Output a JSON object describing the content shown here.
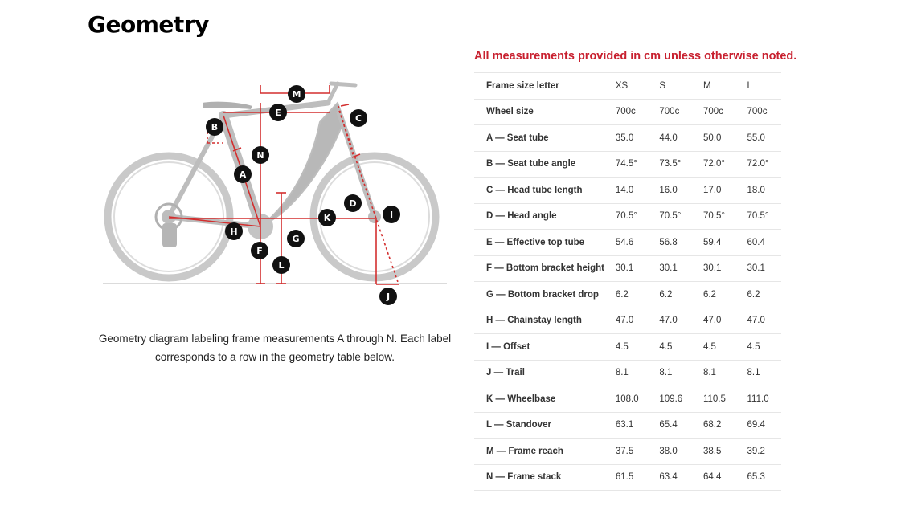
{
  "page": {
    "title": "Geometry",
    "caption_line1": "Geometry diagram labeling frame measurements A through N. Each label",
    "caption_line2": "corresponds to a row in the geometry table below.",
    "note": "All measurements provided in cm unless otherwise noted."
  },
  "diagram": {
    "markers": [
      "A",
      "B",
      "C",
      "D",
      "E",
      "F",
      "G",
      "H",
      "I",
      "J",
      "K",
      "L",
      "M",
      "N"
    ],
    "accent_color": "#d32f2f",
    "bike_color": "#c9c9c9"
  },
  "table": {
    "header_label": "Frame size letter",
    "sizes": [
      "XS",
      "S",
      "M",
      "L"
    ],
    "rows": [
      {
        "label": "Wheel size",
        "values": [
          "700c",
          "700c",
          "700c",
          "700c"
        ]
      },
      {
        "label": "A — Seat tube",
        "values": [
          "35.0",
          "44.0",
          "50.0",
          "55.0"
        ]
      },
      {
        "label": "B — Seat tube angle",
        "values": [
          "74.5°",
          "73.5°",
          "72.0°",
          "72.0°"
        ]
      },
      {
        "label": "C — Head tube length",
        "values": [
          "14.0",
          "16.0",
          "17.0",
          "18.0"
        ]
      },
      {
        "label": "D — Head angle",
        "values": [
          "70.5°",
          "70.5°",
          "70.5°",
          "70.5°"
        ]
      },
      {
        "label": "E — Effective top tube",
        "values": [
          "54.6",
          "56.8",
          "59.4",
          "60.4"
        ]
      },
      {
        "label": "F — Bottom bracket height",
        "values": [
          "30.1",
          "30.1",
          "30.1",
          "30.1"
        ]
      },
      {
        "label": "G — Bottom bracket drop",
        "values": [
          "6.2",
          "6.2",
          "6.2",
          "6.2"
        ]
      },
      {
        "label": "H — Chainstay length",
        "values": [
          "47.0",
          "47.0",
          "47.0",
          "47.0"
        ]
      },
      {
        "label": "I — Offset",
        "values": [
          "4.5",
          "4.5",
          "4.5",
          "4.5"
        ]
      },
      {
        "label": "J — Trail",
        "values": [
          "8.1",
          "8.1",
          "8.1",
          "8.1"
        ]
      },
      {
        "label": "K — Wheelbase",
        "values": [
          "108.0",
          "109.6",
          "110.5",
          "111.0"
        ]
      },
      {
        "label": "L — Standover",
        "values": [
          "63.1",
          "65.4",
          "68.2",
          "69.4"
        ]
      },
      {
        "label": "M — Frame reach",
        "values": [
          "37.5",
          "38.0",
          "38.5",
          "39.2"
        ]
      },
      {
        "label": "N — Frame stack",
        "values": [
          "61.5",
          "63.4",
          "64.4",
          "65.3"
        ]
      }
    ]
  }
}
